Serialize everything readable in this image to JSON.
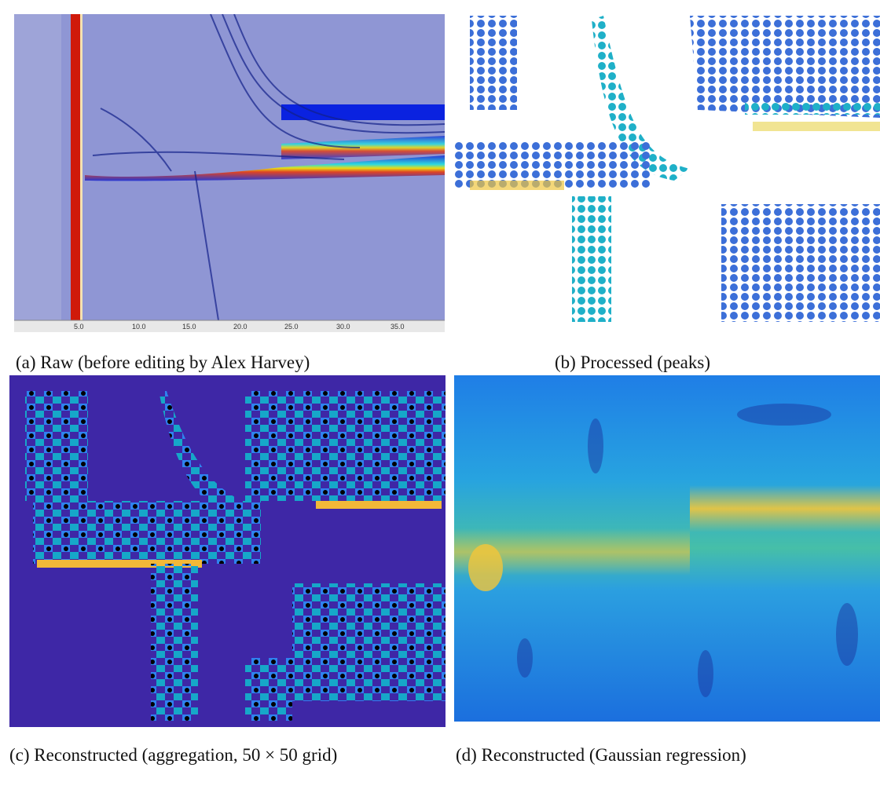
{
  "panels": [
    {
      "caption": "(a) Raw (before editing by Alex Harvey)",
      "axis_labels": [
        "5.0",
        "10.0",
        "15.0",
        "20.0",
        "25.0",
        "30.0",
        "35.0"
      ]
    },
    {
      "caption": "(b) Processed (peaks)"
    },
    {
      "caption": "(c) Reconstructed (aggregation, 50 × 50 grid)"
    },
    {
      "caption": "(d) Reconstructed (Gaussian regression)"
    }
  ]
}
